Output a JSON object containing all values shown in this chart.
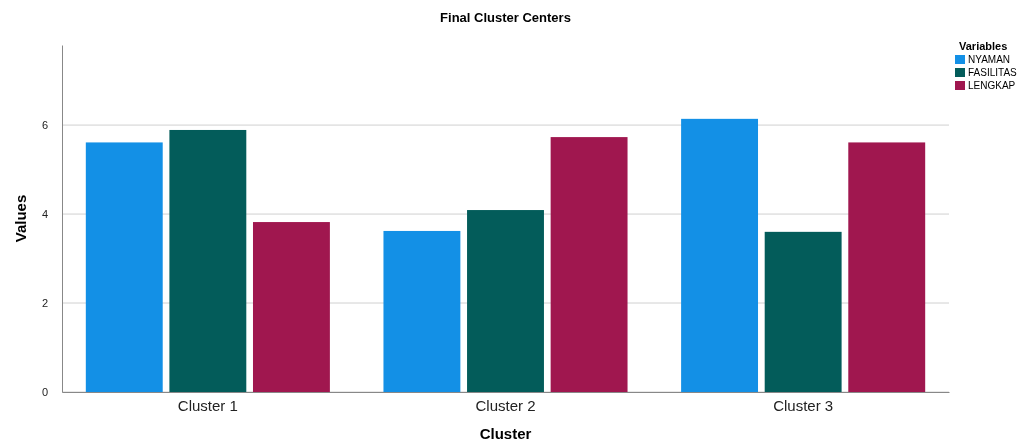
{
  "chart_data": {
    "type": "bar",
    "title": "Final Cluster Centers",
    "xlabel": "Cluster",
    "ylabel": "Values",
    "legend_title": "Variables",
    "categories": [
      "Cluster 1",
      "Cluster 2",
      "Cluster 3"
    ],
    "series": [
      {
        "name": "NYAMAN",
        "color": "#1390e6",
        "values": [
          5.61,
          3.62,
          6.14
        ]
      },
      {
        "name": "FASILITAS",
        "color": "#035c5a",
        "values": [
          5.89,
          4.09,
          3.6
        ]
      },
      {
        "name": "LENGKAP",
        "color": "#a0174f",
        "values": [
          3.82,
          5.73,
          5.61
        ]
      }
    ],
    "ylim": [
      0,
      7.8
    ],
    "yticks": [
      0,
      2,
      4,
      6
    ],
    "grid": "y",
    "legend": "top right"
  }
}
